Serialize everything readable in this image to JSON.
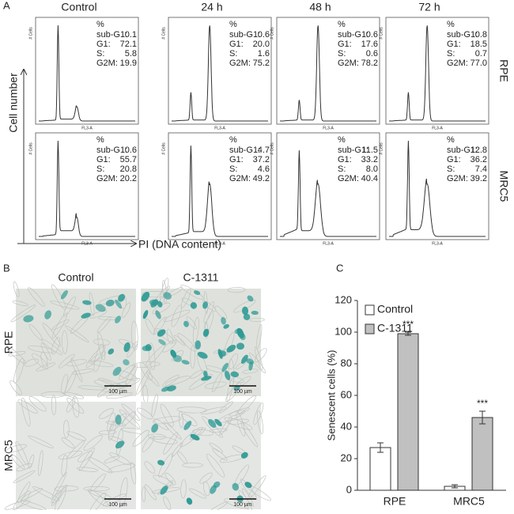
{
  "panel_labels": [
    "A",
    "B",
    "C"
  ],
  "flow": {
    "columns": [
      "Control",
      "24 h",
      "48 h",
      "72 h"
    ],
    "rows": [
      "RPE",
      "MRC5"
    ],
    "y_axis": "Cell number",
    "x_axis": "PI (DNA content)",
    "plot_x_label": "FL3-A",
    "plot_y_label": "# Cells",
    "percent": "%",
    "stat_names": [
      "sub-G1:",
      "G1:",
      "S:",
      "G2M:"
    ],
    "plots": [
      [
        "0.1",
        "72.1",
        "5.8",
        "19.9"
      ],
      [
        "0.6",
        "20.0",
        "1.6",
        "75.2"
      ],
      [
        "0.6",
        "17.6",
        "0.6",
        "78.2"
      ],
      [
        "0.8",
        "18.5",
        "0.7",
        "77.0"
      ],
      [
        "0.6",
        "55.7",
        "20.8",
        "20.2"
      ],
      [
        "4.7",
        "37.2",
        "4.6",
        "49.2"
      ],
      [
        "11.5",
        "33.2",
        "8.0",
        "40.4"
      ],
      [
        "12.8",
        "36.2",
        "7.4",
        "39.2"
      ]
    ]
  },
  "micrographs": {
    "columns": [
      "Control",
      "C-1311"
    ],
    "rows": [
      "RPE",
      "MRC5"
    ],
    "scale_bar": "100 µm"
  },
  "chart_data": {
    "type": "bar",
    "y_label": "Senescent cells (%)",
    "categories": [
      "RPE",
      "MRC5"
    ],
    "series": [
      {
        "name": "Control",
        "color": "#ffffff",
        "values": [
          27,
          2.5
        ],
        "errors": [
          3,
          1
        ]
      },
      {
        "name": "C-1311",
        "color": "#c0c0c0",
        "values": [
          99,
          46
        ],
        "errors": [
          1,
          4
        ],
        "annotations": [
          "***",
          "***"
        ]
      }
    ],
    "ylim": [
      0,
      120
    ],
    "yticks": [
      0,
      20,
      40,
      60,
      80,
      100,
      120
    ],
    "legend": "upper-left"
  }
}
